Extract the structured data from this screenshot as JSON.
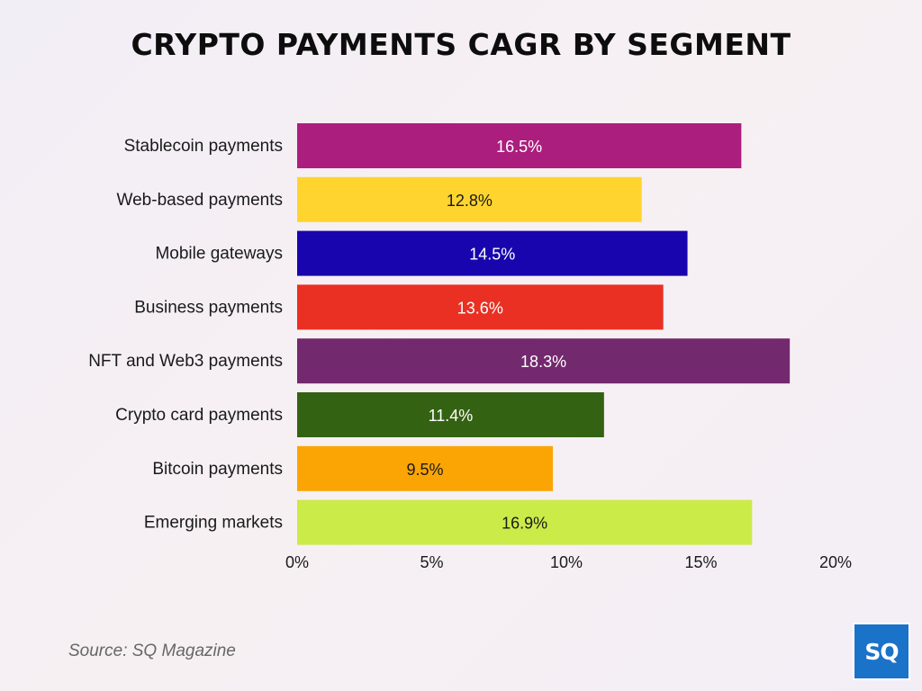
{
  "chart_data": {
    "type": "bar",
    "orientation": "horizontal",
    "title": "CRYPTO PAYMENTS CAGR BY SEGMENT",
    "categories": [
      "Stablecoin payments",
      "Web-based payments",
      "Mobile gateways",
      "Business payments",
      "NFT and Web3 payments",
      "Crypto card payments",
      "Bitcoin payments",
      "Emerging markets"
    ],
    "values": [
      16.5,
      12.8,
      14.5,
      13.6,
      18.3,
      11.4,
      9.5,
      16.9
    ],
    "data_labels": [
      "16.5%",
      "12.8%",
      "14.5%",
      "13.6%",
      "18.3%",
      "11.4%",
      "9.5%",
      "16.9%"
    ],
    "colors": [
      "#ab1e7e",
      "#ffd42e",
      "#1805ad",
      "#e93023",
      "#73296e",
      "#346213",
      "#fba504",
      "#cbeb48"
    ],
    "label_colors": [
      "#ffffff",
      "#1a1a1a",
      "#ffffff",
      "#ffffff",
      "#ffffff",
      "#ffffff",
      "#1a1a1a",
      "#1a1a1a"
    ],
    "xlim": [
      0,
      20
    ],
    "xticks": [
      0,
      5,
      10,
      15,
      20
    ],
    "xtick_labels": [
      "0%",
      "5%",
      "10%",
      "15%",
      "20%"
    ],
    "grid": false,
    "legend": "none"
  },
  "source": "Source: SQ Magazine",
  "logo": "SQ"
}
